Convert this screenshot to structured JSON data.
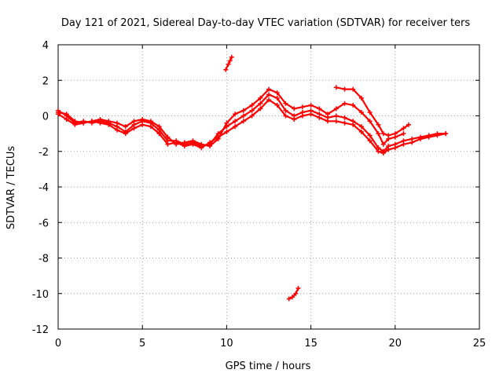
{
  "chart_data": {
    "type": "scatter",
    "title": "Day 121 of 2021, Sidereal Day-to-day VTEC variation (SDTVAR) for receiver ters",
    "xlabel": "GPS time / hours",
    "ylabel": "SDTVAR / TECUs",
    "xlim": [
      0,
      25
    ],
    "ylim": [
      -12,
      4
    ],
    "xticks": [
      0,
      5,
      10,
      15,
      20,
      25
    ],
    "yticks": [
      -12,
      -10,
      -8,
      -6,
      -4,
      -2,
      0,
      2,
      4
    ],
    "grid": true,
    "series_color": "#ff0000",
    "series": [
      {
        "name": "trace-a",
        "points": [
          [
            0,
            0.2
          ],
          [
            0.5,
            0.1
          ],
          [
            1,
            -0.3
          ],
          [
            1.5,
            -0.4
          ],
          [
            2,
            -0.3
          ],
          [
            2.5,
            -0.2
          ],
          [
            3,
            -0.3
          ],
          [
            3.5,
            -0.4
          ],
          [
            4,
            -0.6
          ],
          [
            4.5,
            -0.3
          ],
          [
            5,
            -0.2
          ],
          [
            5.5,
            -0.3
          ],
          [
            6,
            -0.6
          ],
          [
            6.5,
            -1.2
          ],
          [
            7,
            -1.6
          ],
          [
            7.5,
            -1.5
          ],
          [
            8,
            -1.4
          ],
          [
            8.5,
            -1.6
          ],
          [
            9,
            -1.7
          ],
          [
            9.5,
            -1.3
          ],
          [
            10,
            -0.4
          ],
          [
            10.5,
            0.1
          ],
          [
            11,
            0.3
          ],
          [
            11.5,
            0.6
          ],
          [
            12,
            1.0
          ],
          [
            12.5,
            1.5
          ],
          [
            13,
            1.3
          ],
          [
            13.5,
            0.7
          ],
          [
            14,
            0.4
          ],
          [
            14.5,
            0.5
          ],
          [
            15,
            0.6
          ],
          [
            15.5,
            0.4
          ],
          [
            16,
            0.1
          ],
          [
            16.5,
            0.4
          ],
          [
            17,
            0.7
          ],
          [
            17.5,
            0.6
          ],
          [
            18,
            0.2
          ],
          [
            18.5,
            -0.3
          ],
          [
            19,
            -1.0
          ],
          [
            19.3,
            -1.6
          ],
          [
            19.6,
            -1.3
          ],
          [
            20,
            -1.2
          ],
          [
            20.5,
            -1.0
          ]
        ]
      },
      {
        "name": "trace-b",
        "points": [
          [
            0,
            0.3
          ],
          [
            0.5,
            0.0
          ],
          [
            1,
            -0.4
          ],
          [
            1.5,
            -0.3
          ],
          [
            2,
            -0.4
          ],
          [
            2.5,
            -0.3
          ],
          [
            3,
            -0.4
          ],
          [
            3.5,
            -0.6
          ],
          [
            4,
            -0.9
          ],
          [
            4.5,
            -0.5
          ],
          [
            5,
            -0.3
          ],
          [
            5.5,
            -0.4
          ],
          [
            6,
            -0.8
          ],
          [
            6.5,
            -1.4
          ],
          [
            7,
            -1.4
          ],
          [
            7.5,
            -1.6
          ],
          [
            8,
            -1.5
          ],
          [
            8.5,
            -1.7
          ],
          [
            9,
            -1.6
          ],
          [
            9.5,
            -1.0
          ],
          [
            10,
            -0.6
          ],
          [
            10.5,
            -0.3
          ],
          [
            11,
            0.0
          ],
          [
            11.5,
            0.3
          ],
          [
            12,
            0.7
          ],
          [
            12.5,
            1.2
          ],
          [
            13,
            1.0
          ],
          [
            13.5,
            0.3
          ],
          [
            14,
            0.0
          ],
          [
            14.5,
            0.2
          ],
          [
            15,
            0.3
          ],
          [
            15.5,
            0.1
          ],
          [
            16,
            -0.1
          ],
          [
            16.5,
            0.0
          ],
          [
            17,
            -0.1
          ],
          [
            17.5,
            -0.3
          ],
          [
            18,
            -0.6
          ],
          [
            18.5,
            -1.1
          ],
          [
            19,
            -1.8
          ],
          [
            19.3,
            -2.0
          ],
          [
            19.6,
            -1.7
          ],
          [
            20,
            -1.6
          ],
          [
            20.5,
            -1.4
          ],
          [
            21,
            -1.3
          ],
          [
            21.5,
            -1.2
          ],
          [
            22,
            -1.1
          ],
          [
            22.5,
            -1.0
          ],
          [
            23,
            -1.0
          ]
        ]
      },
      {
        "name": "trace-c",
        "points": [
          [
            0,
            0.1
          ],
          [
            0.5,
            -0.2
          ],
          [
            1,
            -0.5
          ],
          [
            1.5,
            -0.4
          ],
          [
            2,
            -0.3
          ],
          [
            2.5,
            -0.4
          ],
          [
            3,
            -0.5
          ],
          [
            3.5,
            -0.8
          ],
          [
            4,
            -1.0
          ],
          [
            4.5,
            -0.7
          ],
          [
            5,
            -0.5
          ],
          [
            5.5,
            -0.6
          ],
          [
            6,
            -1.0
          ],
          [
            6.5,
            -1.6
          ],
          [
            7,
            -1.5
          ],
          [
            7.5,
            -1.7
          ],
          [
            8,
            -1.6
          ],
          [
            8.5,
            -1.8
          ],
          [
            9,
            -1.5
          ],
          [
            9.5,
            -1.2
          ],
          [
            10,
            -0.9
          ],
          [
            10.5,
            -0.6
          ],
          [
            11,
            -0.3
          ],
          [
            11.5,
            0.0
          ],
          [
            12,
            0.4
          ],
          [
            12.5,
            0.9
          ],
          [
            13,
            0.6
          ],
          [
            13.5,
            0.0
          ],
          [
            14,
            -0.2
          ],
          [
            14.5,
            0.0
          ],
          [
            15,
            0.1
          ],
          [
            15.5,
            -0.1
          ],
          [
            16,
            -0.3
          ],
          [
            16.5,
            -0.3
          ],
          [
            17,
            -0.4
          ],
          [
            17.5,
            -0.5
          ],
          [
            18,
            -0.9
          ],
          [
            18.5,
            -1.4
          ],
          [
            19,
            -2.0
          ],
          [
            19.3,
            -2.1
          ],
          [
            19.6,
            -1.9
          ],
          [
            20,
            -1.8
          ],
          [
            20.5,
            -1.6
          ],
          [
            21,
            -1.5
          ],
          [
            21.5,
            -1.3
          ],
          [
            22,
            -1.2
          ],
          [
            22.5,
            -1.1
          ],
          [
            23,
            -1.0
          ]
        ]
      },
      {
        "name": "trace-d",
        "points": [
          [
            16.5,
            1.6
          ],
          [
            17,
            1.5
          ],
          [
            17.5,
            1.5
          ],
          [
            18,
            1.0
          ],
          [
            18.5,
            0.2
          ],
          [
            19,
            -0.5
          ],
          [
            19.3,
            -1.0
          ],
          [
            19.6,
            -1.1
          ],
          [
            20,
            -1.0
          ],
          [
            20.5,
            -0.7
          ],
          [
            20.8,
            -0.5
          ]
        ]
      },
      {
        "name": "segment-high",
        "points": [
          [
            9.95,
            2.6
          ],
          [
            10.1,
            2.9
          ],
          [
            10.2,
            3.1
          ],
          [
            10.3,
            3.3
          ]
        ]
      },
      {
        "name": "segment-low",
        "points": [
          [
            13.7,
            -10.3
          ],
          [
            13.9,
            -10.2
          ],
          [
            14.1,
            -10.0
          ],
          [
            14.25,
            -9.7
          ]
        ]
      }
    ]
  }
}
